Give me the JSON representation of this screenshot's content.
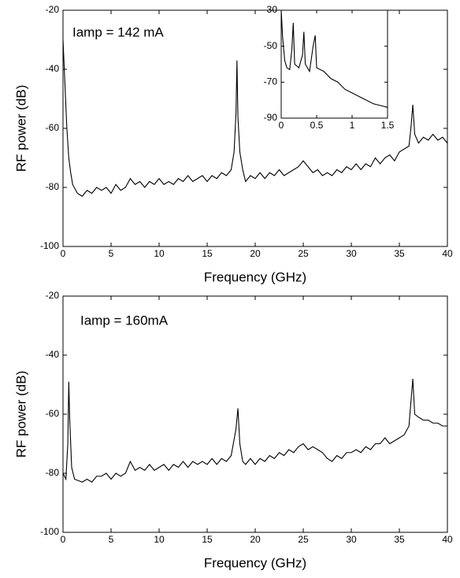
{
  "chart_data": [
    {
      "type": "line",
      "annotation": "Iamp = 142 mA",
      "xlabel": "Frequency (GHz)",
      "ylabel": "RF power (dB)",
      "color": "#000000",
      "xlim": [
        0,
        40
      ],
      "ylim": [
        -100,
        -20
      ],
      "xticks": [
        0,
        5,
        10,
        15,
        20,
        25,
        30,
        35,
        40
      ],
      "yticks": [
        -100,
        -80,
        -60,
        -40,
        -20
      ],
      "x": [
        0,
        0.2,
        0.4,
        0.6,
        0.8,
        1.0,
        1.5,
        2,
        2.5,
        3,
        3.5,
        4,
        4.5,
        5,
        5.5,
        6,
        6.5,
        7,
        7.5,
        8,
        8.5,
        9,
        9.5,
        10,
        10.5,
        11,
        11.5,
        12,
        12.5,
        13,
        13.5,
        14,
        14.5,
        15,
        15.5,
        16,
        16.5,
        17,
        17.5,
        17.8,
        18,
        18.1,
        18.2,
        18.4,
        18.7,
        19,
        19.5,
        20,
        20.5,
        21,
        21.5,
        22,
        22.5,
        23,
        23.5,
        24,
        24.5,
        25,
        25.5,
        26,
        26.5,
        27,
        27.5,
        28,
        28.5,
        29,
        29.5,
        30,
        30.5,
        31,
        31.5,
        32,
        32.5,
        33,
        33.5,
        34,
        34.5,
        35,
        35.5,
        36,
        36.2,
        36.4,
        36.6,
        37,
        37.5,
        38,
        38.5,
        39,
        39.5,
        40
      ],
      "values": [
        -30,
        -45,
        -60,
        -70,
        -75,
        -79,
        -82,
        -83,
        -81,
        -82,
        -80,
        -81,
        -80,
        -82,
        -79,
        -81,
        -80,
        -77,
        -79,
        -78,
        -80,
        -78,
        -79,
        -77,
        -79,
        -78,
        -79,
        -77,
        -78,
        -76,
        -78,
        -77,
        -76,
        -78,
        -76,
        -77,
        -75,
        -76,
        -74,
        -68,
        -55,
        -37,
        -56,
        -68,
        -74,
        -78,
        -76,
        -77,
        -75,
        -77,
        -75,
        -76,
        -74,
        -76,
        -75,
        -74,
        -73,
        -71,
        -73,
        -75,
        -74,
        -76,
        -75,
        -76,
        -74,
        -75,
        -73,
        -74,
        -72,
        -74,
        -72,
        -73,
        -70,
        -72,
        -70,
        -69,
        -71,
        -68,
        -67,
        -66,
        -60,
        -52,
        -62,
        -65,
        -63,
        -64,
        -62,
        -64,
        -63,
        -65
      ]
    },
    {
      "type": "line",
      "annotation": "Iamp = 160mA",
      "xlabel": "Frequency (GHz)",
      "ylabel": "RF power (dB)",
      "color": "#000000",
      "xlim": [
        0,
        40
      ],
      "ylim": [
        -100,
        -20
      ],
      "xticks": [
        0,
        5,
        10,
        15,
        20,
        25,
        30,
        35,
        40
      ],
      "yticks": [
        -100,
        -80,
        -60,
        -40,
        -20
      ],
      "x": [
        0,
        0.3,
        0.5,
        0.6,
        0.7,
        0.9,
        1.2,
        2,
        2.5,
        3,
        3.5,
        4,
        4.5,
        5,
        5.5,
        6,
        6.5,
        7,
        7.5,
        8,
        8.5,
        9,
        9.5,
        10,
        10.5,
        11,
        11.5,
        12,
        12.5,
        13,
        13.5,
        14,
        14.5,
        15,
        15.5,
        16,
        16.5,
        17,
        17.5,
        18,
        18.2,
        18.4,
        18.7,
        19,
        19.5,
        20,
        20.5,
        21,
        21.5,
        22,
        22.5,
        23,
        23.5,
        24,
        24.5,
        25,
        25.5,
        26,
        26.5,
        27,
        27.5,
        28,
        28.5,
        29,
        29.5,
        30,
        30.5,
        31,
        31.5,
        32,
        32.5,
        33,
        33.5,
        34,
        34.5,
        35,
        35.5,
        36,
        36.4,
        36.6,
        37,
        37.5,
        38,
        38.5,
        39,
        39.5,
        40
      ],
      "values": [
        -80,
        -82,
        -70,
        -49,
        -62,
        -78,
        -82,
        -83,
        -82,
        -83,
        -81,
        -81,
        -80,
        -82,
        -80,
        -81,
        -80,
        -76,
        -79,
        -78,
        -79,
        -77,
        -79,
        -78,
        -77,
        -79,
        -77,
        -78,
        -76,
        -78,
        -76,
        -77,
        -76,
        -77,
        -75,
        -77,
        -75,
        -76,
        -74,
        -65,
        -58,
        -70,
        -76,
        -77,
        -75,
        -77,
        -75,
        -76,
        -74,
        -75,
        -73,
        -74,
        -72,
        -73,
        -71,
        -70,
        -72,
        -71,
        -72,
        -73,
        -75,
        -76,
        -74,
        -75,
        -73,
        -73,
        -72,
        -73,
        -71,
        -72,
        -70,
        -70,
        -68,
        -70,
        -69,
        -68,
        -67,
        -64,
        -48,
        -60,
        -61,
        -62,
        -62,
        -63,
        -63,
        -64,
        -64
      ]
    },
    {
      "type": "line",
      "color": "#000000",
      "xlim": [
        0,
        1.5
      ],
      "ylim": [
        -90,
        -30
      ],
      "xticks": [
        0,
        0.5,
        1,
        1.5
      ],
      "yticks": [
        -90,
        -70,
        -50,
        -30
      ],
      "x": [
        0,
        0.02,
        0.05,
        0.08,
        0.12,
        0.15,
        0.17,
        0.19,
        0.25,
        0.3,
        0.32,
        0.34,
        0.4,
        0.45,
        0.48,
        0.5,
        0.6,
        0.7,
        0.8,
        0.9,
        1.0,
        1.1,
        1.2,
        1.3,
        1.4,
        1.5
      ],
      "values": [
        -30,
        -45,
        -58,
        -62,
        -63,
        -52,
        -37,
        -60,
        -62,
        -55,
        -42,
        -60,
        -64,
        -50,
        -44,
        -62,
        -64,
        -68,
        -70,
        -74,
        -76,
        -78,
        -80,
        -82,
        -83,
        -84
      ]
    }
  ]
}
